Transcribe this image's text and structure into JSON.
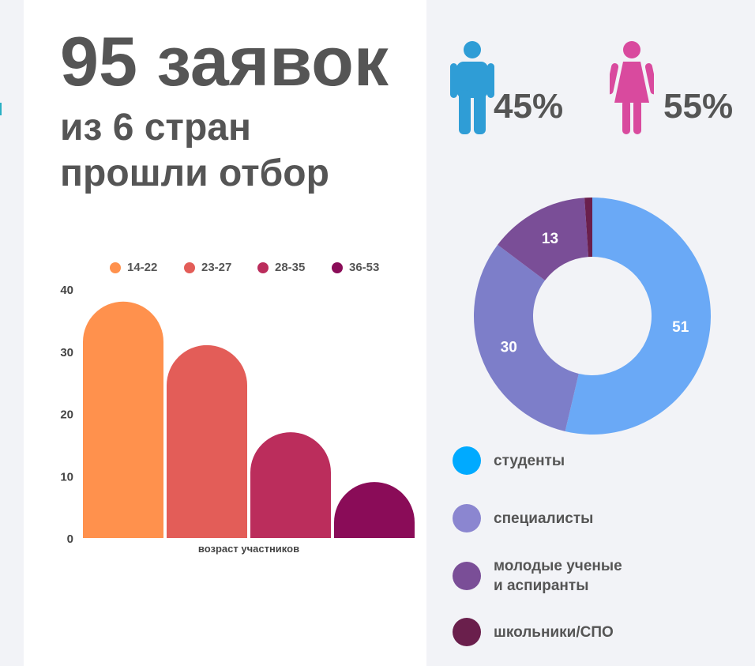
{
  "header": {
    "title": "95 заявок",
    "subtitle_line1": "из 6 стран",
    "subtitle_line2": "прошли отбор"
  },
  "gender": {
    "male": {
      "icon": "male-figure-icon",
      "percent": "45%",
      "color": "#2f9dd6"
    },
    "female": {
      "icon": "female-figure-icon",
      "percent": "55%",
      "color": "#d94a9e"
    }
  },
  "chart_data": [
    {
      "type": "bar",
      "xlabel": "возраст участников",
      "ylabel": "",
      "ylim": [
        0,
        40
      ],
      "yticks": [
        0,
        10,
        20,
        30,
        40
      ],
      "legend_position": "top",
      "series": [
        {
          "name": "14-22",
          "value": 38,
          "color": "#ff914d"
        },
        {
          "name": "23-27",
          "value": 31,
          "color": "#e35d58"
        },
        {
          "name": "28-35",
          "value": 17,
          "color": "#bb2d5c"
        },
        {
          "name": "36-53",
          "value": 9,
          "color": "#8a0c58"
        }
      ]
    },
    {
      "type": "pie",
      "donut": true,
      "slices": [
        {
          "label": "студенты",
          "value": 51,
          "shown_label": "51",
          "color": "#6aa9f6"
        },
        {
          "label": "специалисты",
          "value": 30,
          "shown_label": "30",
          "color": "#7d7ec9"
        },
        {
          "label": "молодые ученые\nи аспиранты",
          "value": 13,
          "shown_label": "13",
          "color": "#7a4e97"
        },
        {
          "label": "школьники/СПО",
          "value": 1,
          "shown_label": "",
          "color": "#6a1f4c"
        }
      ]
    }
  ],
  "categories_legend": [
    {
      "label": "студенты",
      "color": "#00aaff"
    },
    {
      "label": "специалисты",
      "color": "#8b86d0"
    },
    {
      "label": "молодые ученые\nи аспиранты",
      "color": "#7a4e97"
    },
    {
      "label": "школьники/СПО",
      "color": "#6a1f4c"
    }
  ]
}
